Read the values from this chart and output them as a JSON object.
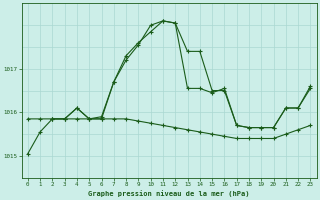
{
  "title": "Graphe pression niveau de la mer (hPa)",
  "bg_color": "#cceee8",
  "grid_color": "#aad8d2",
  "line_color": "#1a5c1a",
  "xlim": [
    -0.5,
    23.5
  ],
  "ylim": [
    1014.5,
    1018.5
  ],
  "yticks": [
    1015,
    1016,
    1017
  ],
  "xticks": [
    0,
    1,
    2,
    3,
    4,
    5,
    6,
    7,
    8,
    9,
    10,
    11,
    12,
    13,
    14,
    15,
    16,
    17,
    18,
    19,
    20,
    21,
    22,
    23
  ],
  "series1_x": [
    0,
    1,
    2,
    3,
    4,
    5,
    6,
    7,
    8,
    9,
    10,
    11,
    12,
    13,
    14,
    15,
    16,
    17,
    18,
    19,
    20,
    21,
    22,
    23
  ],
  "series1_y": [
    1015.05,
    1015.55,
    1015.85,
    1015.85,
    1016.1,
    1015.85,
    1015.85,
    1016.7,
    1017.3,
    1017.6,
    1017.85,
    1018.1,
    1018.05,
    1017.4,
    1017.4,
    1016.5,
    1016.5,
    1015.7,
    1015.65,
    1015.65,
    1015.65,
    1016.1,
    1016.1,
    1016.55
  ],
  "series2_x": [
    0,
    1,
    2,
    3,
    4,
    5,
    6,
    7,
    8,
    9,
    10,
    11,
    12,
    13,
    14,
    15,
    16,
    17,
    18,
    19,
    20,
    21,
    22,
    23
  ],
  "series2_y": [
    1015.85,
    1015.85,
    1015.85,
    1015.85,
    1015.85,
    1015.85,
    1015.85,
    1015.85,
    1015.85,
    1015.8,
    1015.75,
    1015.7,
    1015.65,
    1015.6,
    1015.55,
    1015.5,
    1015.45,
    1015.4,
    1015.4,
    1015.4,
    1015.4,
    1015.5,
    1015.6,
    1015.7
  ],
  "series3_x": [
    2,
    3,
    4,
    5,
    6,
    7,
    8,
    9,
    10,
    11,
    12,
    13,
    14,
    15,
    16,
    17,
    18,
    19,
    20,
    21,
    22,
    23
  ],
  "series3_y": [
    1015.85,
    1015.85,
    1016.1,
    1015.85,
    1015.9,
    1016.7,
    1017.2,
    1017.55,
    1018.0,
    1018.1,
    1018.05,
    1016.55,
    1016.55,
    1016.45,
    1016.55,
    1015.7,
    1015.65,
    1015.65,
    1015.65,
    1016.1,
    1016.1,
    1016.6
  ]
}
